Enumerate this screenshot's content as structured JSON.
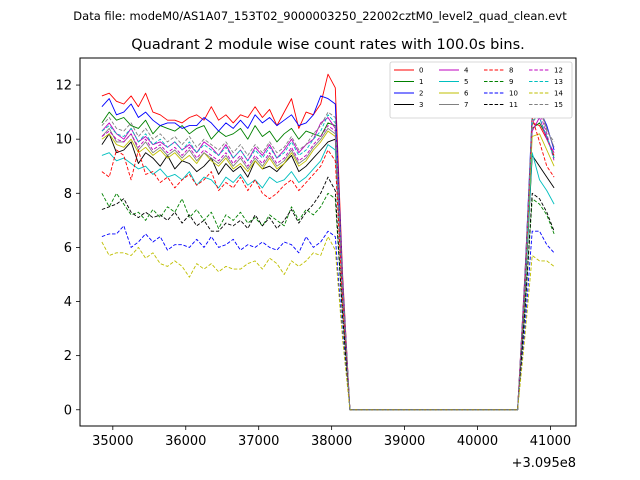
{
  "header": {
    "data_file": "Data file: modeM0/AS1A07_153T02_9000003250_22002cztM0_level2_quad_clean.evt"
  },
  "chart_data": {
    "type": "line",
    "title": "Quadrant 2 module wise count rates with 100.0s bins.",
    "xlabel": "",
    "ylabel": "",
    "x_offset_label": "+3.095e8",
    "x_offset": 309500000,
    "xlim": [
      34550,
      41350
    ],
    "ylim": [
      -0.6,
      13.0
    ],
    "grid": false,
    "legend_position": "top-right",
    "x_ticks": [
      35000,
      36000,
      37000,
      38000,
      39000,
      40000,
      41000
    ],
    "x_tick_labels": [
      "35000",
      "36000",
      "37000",
      "38000",
      "39000",
      "40000",
      "41000"
    ],
    "y_ticks": [
      0,
      2,
      4,
      6,
      8,
      10,
      12
    ],
    "y_tick_labels": [
      "0",
      "2",
      "4",
      "6",
      "8",
      "10",
      "12"
    ],
    "x": [
      34850,
      34950,
      35050,
      35150,
      35250,
      35350,
      35450,
      35550,
      35650,
      35750,
      35850,
      35950,
      36050,
      36150,
      36250,
      36350,
      36450,
      36550,
      36650,
      36750,
      36850,
      36950,
      37050,
      37150,
      37250,
      37350,
      37450,
      37550,
      37650,
      37750,
      37850,
      37950,
      38050,
      38150,
      38250,
      38350,
      38450,
      38550,
      38650,
      38750,
      38850,
      38950,
      39050,
      39150,
      39250,
      39350,
      39450,
      39550,
      39650,
      39750,
      39850,
      39950,
      40050,
      40150,
      40250,
      40350,
      40450,
      40550,
      40650,
      40750,
      40850,
      40950,
      41050
    ],
    "series": [
      {
        "name": "0",
        "color": "#ff0000",
        "dash": "solid",
        "values": [
          11.6,
          11.7,
          11.4,
          11.3,
          11.6,
          11.2,
          11.7,
          11.0,
          10.9,
          10.7,
          10.7,
          10.6,
          10.8,
          10.9,
          10.7,
          11.2,
          10.7,
          10.9,
          10.6,
          10.9,
          10.8,
          11.2,
          10.8,
          11.1,
          10.5,
          11.0,
          11.5,
          10.4,
          11.0,
          10.9,
          11.3,
          12.4,
          11.9,
          5.0,
          0.0,
          0.0,
          0.0,
          0.0,
          0.0,
          0.0,
          0.0,
          0.0,
          0.0,
          0.0,
          0.0,
          0.0,
          0.0,
          0.0,
          0.0,
          0.0,
          0.0,
          0.0,
          0.0,
          0.0,
          0.0,
          0.0,
          0.0,
          0.0,
          5.0,
          10.6,
          10.5,
          10.0,
          9.4
        ]
      },
      {
        "name": "1",
        "color": "#008000",
        "dash": "solid",
        "values": [
          10.6,
          11.0,
          10.7,
          10.8,
          10.5,
          10.4,
          10.7,
          10.2,
          10.5,
          10.4,
          10.3,
          10.5,
          10.2,
          10.4,
          10.5,
          10.0,
          10.3,
          10.1,
          10.2,
          10.4,
          10.0,
          10.5,
          10.1,
          10.3,
          9.9,
          10.2,
          10.4,
          10.0,
          10.3,
          10.2,
          10.1,
          10.6,
          10.5,
          4.5,
          0.0,
          0.0,
          0.0,
          0.0,
          0.0,
          0.0,
          0.0,
          0.0,
          0.0,
          0.0,
          0.0,
          0.0,
          0.0,
          0.0,
          0.0,
          0.0,
          0.0,
          0.0,
          0.0,
          0.0,
          0.0,
          0.0,
          0.0,
          0.0,
          4.6,
          10.4,
          10.6,
          10.1,
          9.3
        ]
      },
      {
        "name": "2",
        "color": "#0000ff",
        "dash": "solid",
        "values": [
          11.2,
          11.5,
          10.9,
          11.0,
          11.3,
          10.8,
          11.0,
          10.7,
          10.5,
          10.6,
          10.6,
          10.4,
          10.5,
          10.5,
          10.8,
          10.6,
          10.3,
          10.6,
          10.4,
          10.7,
          10.4,
          10.9,
          10.6,
          10.8,
          10.5,
          10.7,
          10.9,
          10.5,
          10.6,
          10.9,
          11.6,
          11.5,
          11.3,
          4.8,
          0.0,
          0.0,
          0.0,
          0.0,
          0.0,
          0.0,
          0.0,
          0.0,
          0.0,
          0.0,
          0.0,
          0.0,
          0.0,
          0.0,
          0.0,
          0.0,
          0.0,
          0.0,
          0.0,
          0.0,
          0.0,
          0.0,
          0.0,
          0.0,
          4.9,
          11.0,
          11.1,
          10.5,
          9.6
        ]
      },
      {
        "name": "3",
        "color": "#000000",
        "dash": "solid",
        "values": [
          9.8,
          10.2,
          9.5,
          9.6,
          9.9,
          9.1,
          9.5,
          9.3,
          9.0,
          9.4,
          8.9,
          9.2,
          9.1,
          8.8,
          9.0,
          9.3,
          8.7,
          9.1,
          8.8,
          9.0,
          8.6,
          9.2,
          8.9,
          9.0,
          8.8,
          9.1,
          9.4,
          8.8,
          9.0,
          9.3,
          9.6,
          9.9,
          10.0,
          4.3,
          0.0,
          0.0,
          0.0,
          0.0,
          0.0,
          0.0,
          0.0,
          0.0,
          0.0,
          0.0,
          0.0,
          0.0,
          0.0,
          0.0,
          0.0,
          0.0,
          0.0,
          0.0,
          0.0,
          0.0,
          0.0,
          0.0,
          0.0,
          0.0,
          4.2,
          9.4,
          9.0,
          8.6,
          8.2
        ]
      },
      {
        "name": "4",
        "color": "#bf00bf",
        "dash": "solid",
        "values": [
          10.3,
          10.6,
          10.2,
          10.0,
          10.4,
          9.9,
          10.1,
          9.8,
          9.9,
          9.7,
          9.9,
          9.6,
          9.8,
          9.5,
          9.9,
          9.7,
          9.4,
          9.8,
          9.3,
          9.6,
          9.2,
          9.7,
          9.4,
          9.8,
          9.3,
          9.6,
          10.0,
          9.5,
          9.8,
          10.0,
          10.6,
          10.8,
          10.4,
          4.5,
          0.0,
          0.0,
          0.0,
          0.0,
          0.0,
          0.0,
          0.0,
          0.0,
          0.0,
          0.0,
          0.0,
          0.0,
          0.0,
          0.0,
          0.0,
          0.0,
          0.0,
          0.0,
          0.0,
          0.0,
          0.0,
          0.0,
          0.0,
          0.0,
          4.7,
          10.3,
          10.8,
          10.0,
          9.5
        ]
      },
      {
        "name": "5",
        "color": "#00bfbf",
        "dash": "solid",
        "values": [
          9.4,
          9.5,
          9.2,
          9.3,
          9.1,
          8.9,
          9.0,
          8.7,
          8.9,
          8.6,
          8.7,
          8.5,
          8.8,
          8.3,
          8.6,
          8.5,
          8.2,
          8.6,
          8.4,
          8.7,
          8.3,
          8.5,
          8.2,
          8.6,
          8.4,
          8.5,
          8.8,
          8.4,
          8.6,
          8.9,
          9.2,
          9.8,
          9.6,
          4.2,
          0.0,
          0.0,
          0.0,
          0.0,
          0.0,
          0.0,
          0.0,
          0.0,
          0.0,
          0.0,
          0.0,
          0.0,
          0.0,
          0.0,
          0.0,
          0.0,
          0.0,
          0.0,
          0.0,
          0.0,
          0.0,
          0.0,
          0.0,
          0.0,
          4.3,
          9.5,
          8.5,
          8.1,
          7.6
        ]
      },
      {
        "name": "6",
        "color": "#bfbf00",
        "dash": "solid",
        "values": [
          10.0,
          10.2,
          9.8,
          9.7,
          10.0,
          9.5,
          9.7,
          9.4,
          9.6,
          9.3,
          9.5,
          9.2,
          9.4,
          9.1,
          9.5,
          9.2,
          9.0,
          9.3,
          8.9,
          9.1,
          8.8,
          9.2,
          8.9,
          9.3,
          8.9,
          9.1,
          9.5,
          9.0,
          9.2,
          9.6,
          9.9,
          10.3,
          10.1,
          4.4,
          0.0,
          0.0,
          0.0,
          0.0,
          0.0,
          0.0,
          0.0,
          0.0,
          0.0,
          0.0,
          0.0,
          0.0,
          0.0,
          0.0,
          0.0,
          0.0,
          0.0,
          0.0,
          0.0,
          0.0,
          0.0,
          0.0,
          0.0,
          0.0,
          4.5,
          10.1,
          10.2,
          9.6,
          9.0
        ]
      },
      {
        "name": "7",
        "color": "#808080",
        "dash": "solid",
        "values": [
          10.1,
          10.4,
          9.9,
          9.9,
          10.2,
          9.6,
          9.9,
          9.5,
          9.7,
          9.4,
          9.6,
          9.3,
          9.6,
          9.2,
          9.5,
          9.3,
          9.1,
          9.4,
          9.0,
          9.3,
          8.9,
          9.3,
          9.0,
          9.4,
          9.0,
          9.2,
          9.6,
          9.1,
          9.3,
          9.7,
          10.0,
          10.4,
          10.2,
          4.4,
          0.0,
          0.0,
          0.0,
          0.0,
          0.0,
          0.0,
          0.0,
          0.0,
          0.0,
          0.0,
          0.0,
          0.0,
          0.0,
          0.0,
          0.0,
          0.0,
          0.0,
          0.0,
          0.0,
          0.0,
          0.0,
          0.0,
          0.0,
          0.0,
          4.6,
          10.9,
          11.2,
          10.4,
          9.7
        ]
      },
      {
        "name": "8",
        "color": "#ff0000",
        "dash": "dashed",
        "values": [
          8.8,
          8.6,
          9.6,
          9.4,
          8.5,
          9.6,
          8.7,
          8.8,
          8.4,
          8.6,
          8.2,
          8.5,
          8.7,
          8.3,
          8.5,
          8.8,
          8.1,
          8.4,
          8.2,
          8.6,
          8.1,
          8.5,
          8.0,
          7.8,
          8.0,
          8.3,
          8.5,
          8.1,
          8.4,
          8.7,
          9.0,
          9.6,
          9.2,
          4.0,
          0.0,
          0.0,
          0.0,
          0.0,
          0.0,
          0.0,
          0.0,
          0.0,
          0.0,
          0.0,
          0.0,
          0.0,
          0.0,
          0.0,
          0.0,
          0.0,
          0.0,
          0.0,
          0.0,
          0.0,
          0.0,
          0.0,
          0.0,
          0.0,
          4.5,
          10.8,
          9.9,
          9.0,
          8.6
        ]
      },
      {
        "name": "9",
        "color": "#008000",
        "dash": "dashed",
        "values": [
          8.0,
          7.5,
          8.0,
          7.6,
          7.2,
          7.3,
          7.0,
          7.4,
          7.1,
          7.5,
          7.3,
          7.8,
          7.1,
          7.4,
          7.0,
          7.3,
          6.7,
          7.2,
          7.0,
          7.3,
          6.9,
          7.1,
          6.8,
          7.2,
          7.0,
          6.8,
          7.5,
          7.0,
          7.4,
          7.2,
          7.5,
          8.0,
          7.8,
          3.4,
          0.0,
          0.0,
          0.0,
          0.0,
          0.0,
          0.0,
          0.0,
          0.0,
          0.0,
          0.0,
          0.0,
          0.0,
          0.0,
          0.0,
          0.0,
          0.0,
          0.0,
          0.0,
          0.0,
          0.0,
          0.0,
          0.0,
          0.0,
          0.0,
          3.6,
          7.8,
          7.6,
          7.2,
          6.5
        ]
      },
      {
        "name": "10",
        "color": "#0000ff",
        "dash": "dashed",
        "values": [
          6.4,
          6.5,
          6.5,
          6.8,
          6.0,
          6.2,
          6.5,
          6.2,
          6.4,
          5.9,
          6.1,
          6.1,
          6.0,
          6.3,
          6.0,
          6.4,
          6.0,
          6.1,
          6.3,
          5.9,
          6.1,
          6.0,
          6.2,
          6.0,
          5.9,
          6.2,
          6.1,
          5.8,
          6.4,
          6.0,
          6.2,
          6.6,
          6.4,
          2.8,
          0.0,
          0.0,
          0.0,
          0.0,
          0.0,
          0.0,
          0.0,
          0.0,
          0.0,
          0.0,
          0.0,
          0.0,
          0.0,
          0.0,
          0.0,
          0.0,
          0.0,
          0.0,
          0.0,
          0.0,
          0.0,
          0.0,
          0.0,
          0.0,
          3.0,
          6.6,
          6.6,
          6.1,
          5.8
        ]
      },
      {
        "name": "11",
        "color": "#000000",
        "dash": "dashed",
        "values": [
          7.4,
          7.5,
          7.6,
          7.8,
          7.3,
          7.1,
          7.3,
          7.1,
          7.2,
          7.0,
          7.3,
          6.9,
          7.2,
          6.8,
          7.0,
          6.6,
          6.6,
          6.9,
          6.8,
          7.0,
          6.7,
          7.2,
          6.8,
          7.1,
          6.7,
          7.0,
          7.4,
          6.9,
          7.3,
          7.6,
          8.0,
          8.6,
          8.1,
          3.5,
          0.0,
          0.0,
          0.0,
          0.0,
          0.0,
          0.0,
          0.0,
          0.0,
          0.0,
          0.0,
          0.0,
          0.0,
          0.0,
          0.0,
          0.0,
          0.0,
          0.0,
          0.0,
          0.0,
          0.0,
          0.0,
          0.0,
          0.0,
          0.0,
          3.6,
          8.0,
          7.8,
          7.3,
          6.6
        ]
      },
      {
        "name": "12",
        "color": "#bf00bf",
        "dash": "dashed",
        "values": [
          10.1,
          10.3,
          10.0,
          9.9,
          10.2,
          9.7,
          10.0,
          9.6,
          9.8,
          9.5,
          9.7,
          9.4,
          9.7,
          9.3,
          9.6,
          9.4,
          9.2,
          9.5,
          9.1,
          9.4,
          9.0,
          9.4,
          9.1,
          9.5,
          9.1,
          9.3,
          9.7,
          9.2,
          9.4,
          9.8,
          10.1,
          10.5,
          10.3,
          4.4,
          0.0,
          0.0,
          0.0,
          0.0,
          0.0,
          0.0,
          0.0,
          0.0,
          0.0,
          0.0,
          0.0,
          0.0,
          0.0,
          0.0,
          0.0,
          0.0,
          0.0,
          0.0,
          0.0,
          0.0,
          0.0,
          0.0,
          0.0,
          0.0,
          4.6,
          10.6,
          11.0,
          10.2,
          9.2
        ]
      },
      {
        "name": "13",
        "color": "#00bfbf",
        "dash": "dashed",
        "values": [
          10.3,
          10.5,
          10.2,
          10.1,
          10.4,
          9.9,
          10.2,
          9.8,
          10.0,
          9.7,
          9.9,
          9.6,
          9.9,
          9.5,
          9.8,
          9.6,
          9.4,
          9.7,
          9.3,
          9.6,
          9.2,
          9.6,
          9.3,
          9.7,
          9.3,
          9.5,
          9.9,
          9.4,
          9.6,
          10.0,
          10.3,
          10.9,
          10.6,
          4.6,
          0.0,
          0.0,
          0.0,
          0.0,
          0.0,
          0.0,
          0.0,
          0.0,
          0.0,
          0.0,
          0.0,
          0.0,
          0.0,
          0.0,
          0.0,
          0.0,
          0.0,
          0.0,
          0.0,
          0.0,
          0.0,
          0.0,
          0.0,
          0.0,
          4.7,
          10.7,
          10.8,
          10.1,
          9.3
        ]
      },
      {
        "name": "14",
        "color": "#bfbf00",
        "dash": "dashed",
        "values": [
          6.2,
          5.7,
          5.8,
          5.8,
          5.7,
          6.0,
          5.6,
          5.8,
          5.4,
          5.3,
          5.5,
          5.3,
          4.9,
          5.4,
          5.2,
          5.4,
          5.1,
          5.3,
          5.2,
          5.2,
          5.4,
          5.5,
          5.2,
          5.6,
          5.4,
          5.0,
          5.5,
          5.3,
          5.5,
          5.8,
          5.7,
          6.4,
          5.9,
          2.6,
          0.0,
          0.0,
          0.0,
          0.0,
          0.0,
          0.0,
          0.0,
          0.0,
          0.0,
          0.0,
          0.0,
          0.0,
          0.0,
          0.0,
          0.0,
          0.0,
          0.0,
          0.0,
          0.0,
          0.0,
          0.0,
          0.0,
          0.0,
          0.0,
          2.7,
          5.7,
          5.5,
          5.5,
          5.3
        ]
      },
      {
        "name": "15",
        "color": "#808080",
        "dash": "dashed",
        "values": [
          10.5,
          10.8,
          10.4,
          10.3,
          10.6,
          10.1,
          10.4,
          10.0,
          10.2,
          9.9,
          10.1,
          9.8,
          10.1,
          9.7,
          10.0,
          9.8,
          9.6,
          9.9,
          9.5,
          9.8,
          9.4,
          9.8,
          9.5,
          9.9,
          9.5,
          9.7,
          10.1,
          9.6,
          9.8,
          10.2,
          10.5,
          11.0,
          10.8,
          4.7,
          0.0,
          0.0,
          0.0,
          0.0,
          0.0,
          0.0,
          0.0,
          0.0,
          0.0,
          0.0,
          0.0,
          0.0,
          0.0,
          0.0,
          0.0,
          0.0,
          0.0,
          0.0,
          0.0,
          0.0,
          0.0,
          0.0,
          0.0,
          0.0,
          4.8,
          10.5,
          11.2,
          10.3,
          9.9
        ]
      }
    ]
  }
}
